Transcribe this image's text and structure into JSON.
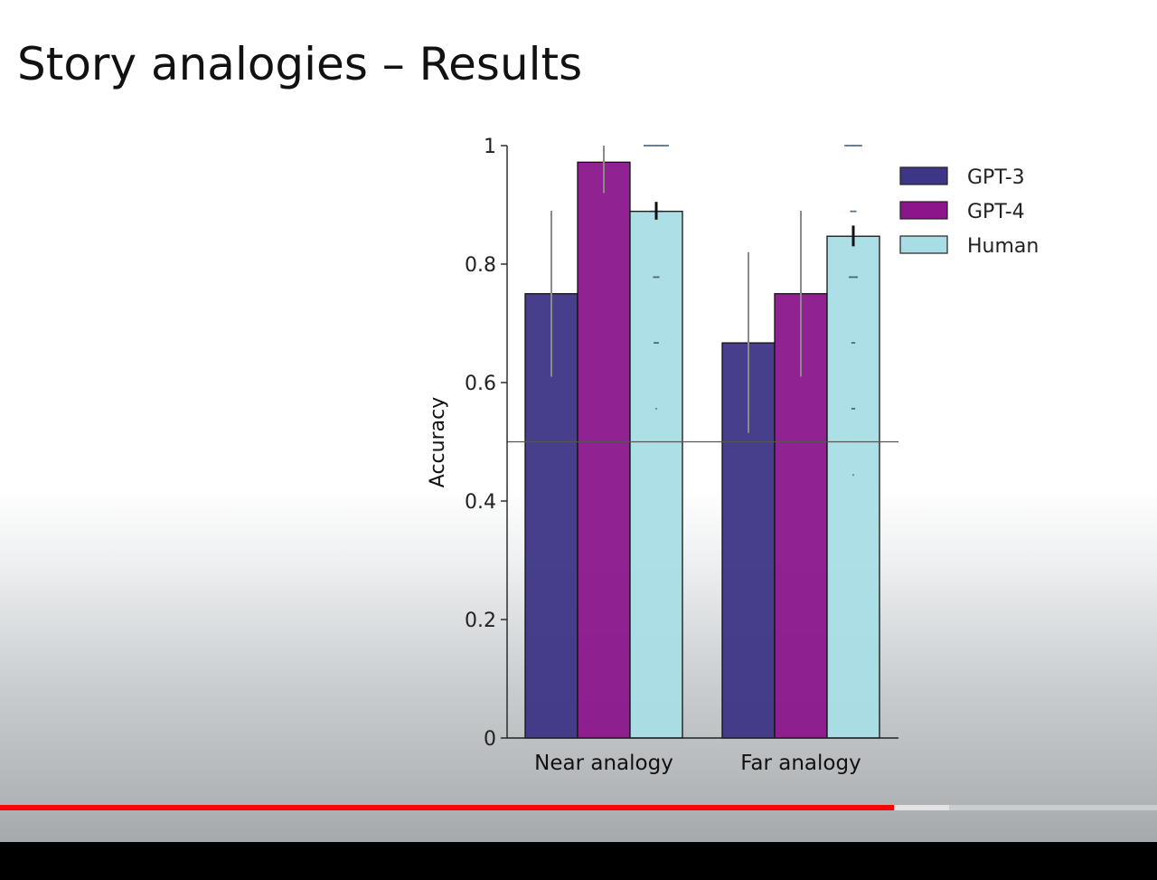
{
  "slide": {
    "title": "Story analogies – Results"
  },
  "player": {
    "progress": 0.773,
    "buffered": 0.82
  },
  "chart_data": {
    "type": "bar",
    "ylabel": "Accuracy",
    "ylim": [
      0,
      1
    ],
    "yticks": [
      0,
      0.2,
      0.4,
      0.6,
      0.8,
      1
    ],
    "ytick_labels": [
      "0",
      "0.2",
      "0.4",
      "0.6",
      "0.8",
      "1"
    ],
    "categories": [
      "Near analogy",
      "Far analogy"
    ],
    "chance_line": 0.5,
    "legend_position": "top-right",
    "series": [
      {
        "name": "GPT-3",
        "color": "#3d3585",
        "values": [
          0.75,
          0.667
        ],
        "err_low": [
          0.61,
          0.515
        ],
        "err_high": [
          0.89,
          0.82
        ],
        "err_color": "#8a8a8a"
      },
      {
        "name": "GPT-4",
        "color": "#8b168c",
        "values": [
          0.972,
          0.75
        ],
        "err_low": [
          0.92,
          0.61
        ],
        "err_high": [
          1.0,
          0.89
        ],
        "err_color": "#8a8a8a"
      },
      {
        "name": "Human",
        "color": "#a9dde5",
        "values": [
          0.889,
          0.847
        ],
        "err_low": [
          0.875,
          0.83
        ],
        "err_high": [
          0.905,
          0.865
        ],
        "err_color": "#111111",
        "points": [
          [
            1,
            1,
            1,
            1,
            1,
            1,
            1,
            1,
            1,
            1,
            1,
            1,
            1,
            1,
            1,
            1,
            1,
            1,
            1,
            1,
            0.889,
            0.889,
            0.889,
            0.889,
            0.889,
            0.889,
            0.889,
            0.889,
            0.889,
            0.889,
            0.778,
            0.778,
            0.778,
            0.778,
            0.778,
            0.667,
            0.667,
            0.667,
            0.667,
            0.556
          ],
          [
            1,
            1,
            1,
            1,
            1,
            1,
            1,
            1,
            1,
            1,
            1,
            1,
            1,
            1,
            0.889,
            0.889,
            0.889,
            0.889,
            0.889,
            0.778,
            0.778,
            0.778,
            0.778,
            0.778,
            0.778,
            0.778,
            0.667,
            0.667,
            0.667,
            0.556,
            0.556,
            0.556,
            0.444
          ]
        ]
      }
    ]
  }
}
